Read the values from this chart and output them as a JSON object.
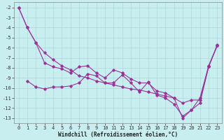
{
  "xlabel": "Windchill (Refroidissement éolien,°C)",
  "background_color": "#c8eef0",
  "grid_color": "#b0dde0",
  "line_color": "#993399",
  "xlim": [
    -0.5,
    23.5
  ],
  "ylim": [
    -13.5,
    -1.5
  ],
  "xticks": [
    0,
    1,
    2,
    3,
    4,
    5,
    6,
    7,
    8,
    9,
    10,
    11,
    12,
    13,
    14,
    15,
    16,
    17,
    18,
    19,
    20,
    21,
    22,
    23
  ],
  "yticks": [
    -2,
    -3,
    -4,
    -5,
    -6,
    -7,
    -8,
    -9,
    -10,
    -11,
    -12,
    -13
  ],
  "series1_x": [
    0,
    1,
    2,
    3,
    4,
    5,
    6,
    7,
    8,
    9,
    10,
    11,
    12,
    13,
    14,
    15,
    16,
    17,
    18,
    19,
    20,
    21,
    22,
    23
  ],
  "series1_y": [
    -2.0,
    -4.0,
    -5.5,
    -7.5,
    -7.9,
    -8.1,
    -8.5,
    -7.9,
    -7.8,
    -8.5,
    -9.0,
    -8.2,
    -8.5,
    -9.1,
    -9.5,
    -9.5,
    -10.3,
    -10.5,
    -11.0,
    -11.5,
    -11.2,
    -11.2,
    -7.9,
    -5.8
  ],
  "series2_x": [
    0,
    1,
    2,
    3,
    4,
    5,
    6,
    7,
    8,
    9,
    10,
    11,
    12,
    13,
    14,
    15,
    16,
    17,
    18,
    19,
    20,
    21,
    22,
    23
  ],
  "series2_y": [
    -2.0,
    -4.0,
    -5.5,
    -6.5,
    -7.2,
    -7.8,
    -8.2,
    -8.8,
    -9.0,
    -9.3,
    -9.5,
    -9.7,
    -9.9,
    -10.1,
    -10.2,
    -10.4,
    -10.6,
    -10.8,
    -11.0,
    -13.0,
    -12.2,
    -11.0,
    -7.8,
    -5.8
  ],
  "series3_x": [
    1,
    2,
    3,
    4,
    5,
    6,
    7,
    8,
    9,
    10,
    11,
    12,
    13,
    14,
    15,
    16,
    17,
    18,
    19,
    20,
    21,
    22,
    23
  ],
  "series3_y": [
    -9.3,
    -9.9,
    -10.1,
    -9.9,
    -9.9,
    -9.8,
    -9.5,
    -8.6,
    -8.8,
    -9.5,
    -9.5,
    -8.7,
    -9.5,
    -10.4,
    -9.4,
    -10.7,
    -11.0,
    -11.6,
    -12.8,
    -12.2,
    -11.5,
    -7.9,
    -5.7
  ],
  "fontsize_label": 5.5,
  "fontsize_tick": 5.0,
  "marker": "D",
  "markersize": 1.8,
  "linewidth": 0.8
}
